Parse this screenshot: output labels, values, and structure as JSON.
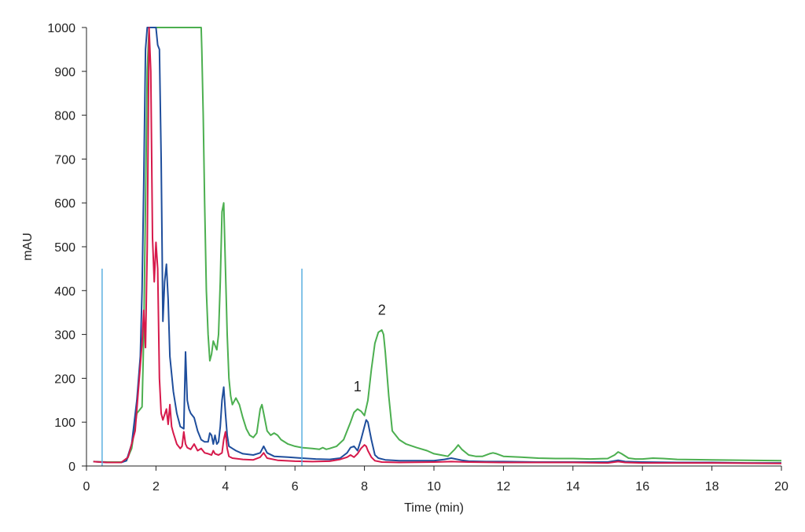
{
  "chart_data": {
    "type": "line",
    "title": "",
    "xlabel": "Time (min)",
    "ylabel": "mAU",
    "xlim": [
      0,
      20
    ],
    "ylim": [
      0,
      1000
    ],
    "x_ticks": [
      "0",
      "2",
      "4",
      "6",
      "8",
      "10",
      "12",
      "14",
      "16",
      "18",
      "20"
    ],
    "y_ticks": [
      "0",
      "100",
      "200",
      "300",
      "400",
      "500",
      "600",
      "700",
      "800",
      "900",
      "1000"
    ],
    "grid": false,
    "legend": "none",
    "vertical_markers": [
      {
        "x": 0.45,
        "top": 450,
        "color": "#5bb0e0"
      },
      {
        "x": 6.2,
        "top": 450,
        "color": "#5bb0e0"
      }
    ],
    "annotations": [
      {
        "text": "1",
        "x": 7.8,
        "y": 170
      },
      {
        "text": "2",
        "x": 8.5,
        "y": 345
      }
    ],
    "series": [
      {
        "color": "#4caf50",
        "x": [
          0.2,
          0.6,
          1.0,
          1.15,
          1.3,
          1.45,
          1.6,
          1.65,
          1.7,
          1.75,
          1.8,
          1.85,
          3.3,
          3.32,
          3.36,
          3.4,
          3.45,
          3.5,
          3.55,
          3.6,
          3.65,
          3.7,
          3.75,
          3.8,
          3.85,
          3.9,
          3.95,
          4.0,
          4.05,
          4.1,
          4.15,
          4.2,
          4.3,
          4.4,
          4.5,
          4.6,
          4.7,
          4.8,
          4.9,
          5.0,
          5.05,
          5.1,
          5.2,
          5.3,
          5.4,
          5.5,
          5.6,
          5.8,
          6.0,
          6.2,
          6.5,
          6.7,
          6.8,
          6.9,
          7.0,
          7.2,
          7.4,
          7.6,
          7.7,
          7.8,
          7.9,
          8.0,
          8.1,
          8.2,
          8.3,
          8.4,
          8.5,
          8.55,
          8.6,
          8.7,
          8.8,
          9.0,
          9.2,
          9.5,
          9.8,
          10.0,
          10.2,
          10.4,
          10.6,
          10.7,
          10.8,
          11.0,
          11.2,
          11.4,
          11.6,
          11.7,
          11.8,
          12.0,
          12.5,
          13.0,
          13.5,
          14.0,
          14.5,
          15.0,
          15.2,
          15.3,
          15.4,
          15.6,
          15.8,
          16.0,
          16.3,
          16.6,
          17.0,
          18.0,
          19.0,
          20.0
        ],
        "y": [
          10,
          9,
          9,
          12,
          40,
          120,
          135,
          300,
          600,
          900,
          1000,
          1000,
          1000,
          950,
          800,
          600,
          400,
          300,
          240,
          255,
          285,
          275,
          265,
          300,
          420,
          580,
          600,
          450,
          300,
          200,
          160,
          140,
          155,
          140,
          110,
          85,
          70,
          65,
          75,
          130,
          140,
          120,
          80,
          70,
          75,
          70,
          60,
          50,
          45,
          42,
          40,
          38,
          42,
          38,
          40,
          45,
          60,
          100,
          122,
          130,
          125,
          115,
          150,
          220,
          280,
          305,
          310,
          300,
          260,
          160,
          80,
          60,
          50,
          42,
          35,
          28,
          25,
          22,
          38,
          48,
          38,
          25,
          22,
          22,
          28,
          30,
          28,
          22,
          20,
          18,
          17,
          17,
          16,
          17,
          25,
          32,
          28,
          18,
          16,
          16,
          18,
          17,
          15,
          14,
          13,
          12
        ]
      },
      {
        "color": "#1f4e9c",
        "x": [
          0.2,
          0.6,
          1.0,
          1.15,
          1.3,
          1.45,
          1.55,
          1.6,
          1.65,
          1.7,
          1.75,
          1.85,
          2.0,
          2.05,
          2.1,
          2.15,
          2.2,
          2.25,
          2.3,
          2.35,
          2.4,
          2.5,
          2.6,
          2.7,
          2.8,
          2.85,
          2.9,
          2.95,
          3.0,
          3.1,
          3.2,
          3.3,
          3.4,
          3.5,
          3.55,
          3.6,
          3.65,
          3.7,
          3.75,
          3.8,
          3.85,
          3.9,
          3.95,
          4.0,
          4.05,
          4.1,
          4.2,
          4.3,
          4.5,
          4.8,
          5.0,
          5.1,
          5.2,
          5.4,
          5.8,
          6.2,
          6.6,
          7.0,
          7.3,
          7.5,
          7.6,
          7.7,
          7.8,
          7.9,
          8.0,
          8.05,
          8.1,
          8.2,
          8.3,
          8.4,
          8.6,
          9.0,
          9.5,
          10.0,
          10.3,
          10.5,
          10.8,
          11.0,
          11.5,
          12.0,
          13.0,
          14.0,
          15.0,
          15.3,
          15.5,
          16.0,
          17.0,
          18.0,
          19.0,
          20.0
        ],
        "y": [
          10,
          8,
          8,
          12,
          50,
          150,
          250,
          400,
          650,
          950,
          1000,
          1000,
          1000,
          960,
          950,
          700,
          330,
          420,
          460,
          380,
          250,
          170,
          120,
          90,
          85,
          260,
          150,
          130,
          120,
          110,
          80,
          60,
          55,
          55,
          75,
          70,
          50,
          70,
          50,
          55,
          90,
          150,
          180,
          120,
          70,
          45,
          40,
          35,
          28,
          25,
          30,
          45,
          30,
          22,
          20,
          18,
          16,
          15,
          18,
          30,
          42,
          45,
          35,
          60,
          90,
          105,
          100,
          60,
          25,
          18,
          14,
          12,
          12,
          12,
          15,
          18,
          13,
          11,
          10,
          10,
          9,
          9,
          9,
          13,
          10,
          9,
          8,
          8,
          7,
          7
        ]
      },
      {
        "color": "#d6194b",
        "x": [
          0.2,
          0.6,
          1.0,
          1.2,
          1.4,
          1.5,
          1.6,
          1.65,
          1.7,
          1.75,
          1.8,
          1.85,
          1.9,
          1.95,
          2.0,
          2.05,
          2.1,
          2.15,
          2.2,
          2.3,
          2.35,
          2.4,
          2.45,
          2.5,
          2.6,
          2.7,
          2.75,
          2.8,
          2.85,
          2.9,
          3.0,
          3.1,
          3.2,
          3.3,
          3.4,
          3.5,
          3.6,
          3.65,
          3.7,
          3.8,
          3.9,
          3.95,
          4.0,
          4.05,
          4.1,
          4.2,
          4.5,
          4.8,
          5.0,
          5.1,
          5.2,
          5.5,
          6.0,
          6.5,
          7.0,
          7.3,
          7.5,
          7.6,
          7.7,
          7.8,
          7.9,
          8.0,
          8.05,
          8.1,
          8.2,
          8.3,
          8.5,
          9.0,
          10.0,
          10.5,
          11.0,
          12.0,
          14.0,
          15.0,
          15.3,
          15.5,
          16.0,
          18.0,
          20.0
        ],
        "y": [
          10,
          8,
          8,
          20,
          80,
          180,
          280,
          355,
          270,
          500,
          1000,
          900,
          520,
          420,
          510,
          450,
          200,
          120,
          105,
          130,
          95,
          140,
          90,
          75,
          50,
          40,
          45,
          78,
          50,
          42,
          38,
          50,
          35,
          40,
          30,
          28,
          25,
          35,
          28,
          25,
          30,
          60,
          78,
          40,
          22,
          18,
          15,
          14,
          20,
          30,
          18,
          13,
          11,
          10,
          11,
          15,
          20,
          25,
          20,
          28,
          40,
          48,
          45,
          35,
          20,
          12,
          9,
          8,
          9,
          10,
          9,
          8,
          8,
          7,
          10,
          8,
          7,
          7,
          6
        ]
      }
    ]
  }
}
